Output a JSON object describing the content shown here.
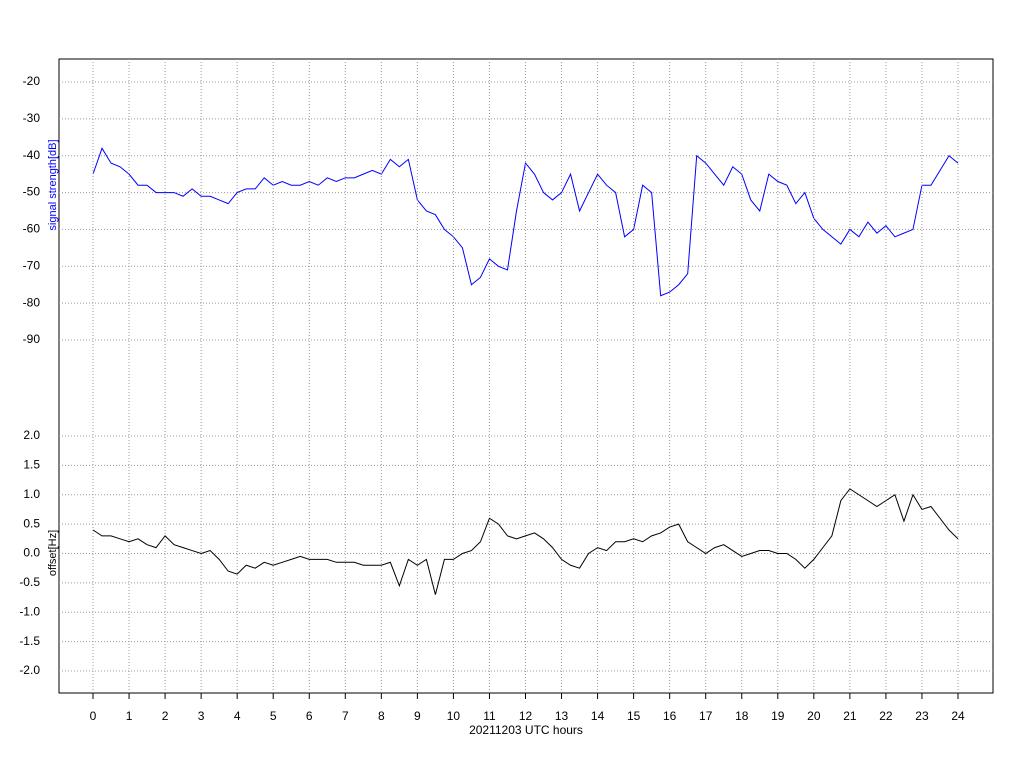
{
  "chart_data": [
    {
      "type": "line",
      "ylabel": "signal strength[dB]",
      "color": "#0000ff",
      "x": [
        0,
        0.25,
        0.5,
        0.75,
        1,
        1.25,
        1.5,
        1.75,
        2,
        2.25,
        2.5,
        2.75,
        3,
        3.25,
        3.5,
        3.75,
        4,
        4.25,
        4.5,
        4.75,
        5,
        5.25,
        5.5,
        5.75,
        6,
        6.25,
        6.5,
        6.75,
        7,
        7.25,
        7.5,
        7.75,
        8,
        8.25,
        8.5,
        8.75,
        9,
        9.25,
        9.5,
        9.75,
        10,
        10.25,
        10.5,
        10.75,
        11,
        11.25,
        11.5,
        11.75,
        12,
        12.25,
        12.5,
        12.75,
        13,
        13.25,
        13.5,
        13.75,
        14,
        14.25,
        14.5,
        14.75,
        15,
        15.25,
        15.5,
        15.75,
        16,
        16.25,
        16.5,
        16.75,
        17,
        17.25,
        17.5,
        17.75,
        18,
        18.25,
        18.5,
        18.75,
        19,
        19.25,
        19.5,
        19.75,
        20,
        20.25,
        20.5,
        20.75,
        21,
        21.25,
        21.5,
        21.75,
        22,
        22.25,
        22.5,
        22.75,
        23,
        23.25,
        23.5,
        23.75,
        24
      ],
      "values": [
        -45,
        -38,
        -42,
        -43,
        -45,
        -48,
        -48,
        -50,
        -50,
        -50,
        -51,
        -49,
        -51,
        -51,
        -52,
        -53,
        -50,
        -49,
        -49,
        -46,
        -48,
        -47,
        -48,
        -48,
        -47,
        -48,
        -46,
        -47,
        -46,
        -46,
        -45,
        -44,
        -45,
        -41,
        -43,
        -41,
        -52,
        -55,
        -56,
        -60,
        -62,
        -65,
        -75,
        -73,
        -68,
        -70,
        -71,
        -55,
        -42,
        -45,
        -50,
        -52,
        -50,
        -45,
        -55,
        -50,
        -45,
        -48,
        -50,
        -62,
        -60,
        -48,
        -50,
        -78,
        -77,
        -75,
        -72,
        -40,
        -42,
        -45,
        -48,
        -43,
        -45,
        -52,
        -55,
        -45,
        -47,
        -48,
        -53,
        -50,
        -57,
        -60,
        -62,
        -64,
        -60,
        -62,
        -58,
        -61,
        -59,
        -62,
        -61,
        -60,
        -48,
        -48,
        -44,
        -40,
        -42
      ],
      "xlim": [
        0,
        24
      ],
      "ylim": [
        -90,
        -20
      ],
      "yticks": [
        -20,
        -30,
        -40,
        -50,
        -60,
        -70,
        -80,
        -90
      ],
      "grid": true
    },
    {
      "type": "line",
      "ylabel": "offset[Hz]",
      "color": "#000000",
      "xlabel": "20211203 UTC hours",
      "x": [
        0,
        0.25,
        0.5,
        0.75,
        1,
        1.25,
        1.5,
        1.75,
        2,
        2.25,
        2.5,
        2.75,
        3,
        3.25,
        3.5,
        3.75,
        4,
        4.25,
        4.5,
        4.75,
        5,
        5.25,
        5.5,
        5.75,
        6,
        6.25,
        6.5,
        6.75,
        7,
        7.25,
        7.5,
        7.75,
        8,
        8.25,
        8.5,
        8.75,
        9,
        9.25,
        9.5,
        9.75,
        10,
        10.25,
        10.5,
        10.75,
        11,
        11.25,
        11.5,
        11.75,
        12,
        12.25,
        12.5,
        12.75,
        13,
        13.25,
        13.5,
        13.75,
        14,
        14.25,
        14.5,
        14.75,
        15,
        15.25,
        15.5,
        15.75,
        16,
        16.25,
        16.5,
        16.75,
        17,
        17.25,
        17.5,
        17.75,
        18,
        18.25,
        18.5,
        18.75,
        19,
        19.25,
        19.5,
        19.75,
        20,
        20.25,
        20.5,
        20.75,
        21,
        21.25,
        21.5,
        21.75,
        22,
        22.25,
        22.5,
        22.75,
        23,
        23.25,
        23.5,
        23.75,
        24
      ],
      "values": [
        0.4,
        0.3,
        0.3,
        0.25,
        0.2,
        0.25,
        0.15,
        0.1,
        0.3,
        0.15,
        0.1,
        0.05,
        0.0,
        0.05,
        -0.1,
        -0.3,
        -0.35,
        -0.2,
        -0.25,
        -0.15,
        -0.2,
        -0.15,
        -0.1,
        -0.05,
        -0.1,
        -0.1,
        -0.1,
        -0.15,
        -0.15,
        -0.15,
        -0.2,
        -0.2,
        -0.2,
        -0.15,
        -0.55,
        -0.1,
        -0.2,
        -0.1,
        -0.7,
        -0.1,
        -0.1,
        0.0,
        0.05,
        0.2,
        0.6,
        0.5,
        0.3,
        0.25,
        0.3,
        0.35,
        0.25,
        0.1,
        -0.1,
        -0.2,
        -0.25,
        0.0,
        0.1,
        0.05,
        0.2,
        0.2,
        0.25,
        0.2,
        0.3,
        0.35,
        0.45,
        0.5,
        0.2,
        0.1,
        0.0,
        0.1,
        0.15,
        0.05,
        -0.05,
        0.0,
        0.05,
        0.05,
        0.0,
        0.0,
        -0.1,
        -0.25,
        -0.1,
        0.1,
        0.3,
        0.9,
        1.1,
        1.0,
        0.9,
        0.8,
        0.9,
        1.0,
        0.55,
        1.0,
        0.75,
        0.8,
        0.6,
        0.4,
        0.25
      ],
      "xlim": [
        0,
        24
      ],
      "xticks": [
        0,
        1,
        2,
        3,
        4,
        5,
        6,
        7,
        8,
        9,
        10,
        11,
        12,
        13,
        14,
        15,
        16,
        17,
        18,
        19,
        20,
        21,
        22,
        23,
        24
      ],
      "ylim": [
        -2,
        2
      ],
      "yticks": [
        {
          "value": 2,
          "label": "2.0"
        },
        1.5,
        {
          "value": 1,
          "label": "1.0"
        },
        0.5,
        {
          "value": 0,
          "label": "0.0"
        },
        -0.5,
        {
          "value": -1,
          "label": "-1.0"
        },
        -1.5,
        {
          "value": -2,
          "label": "-2.0"
        }
      ],
      "grid": true
    }
  ]
}
